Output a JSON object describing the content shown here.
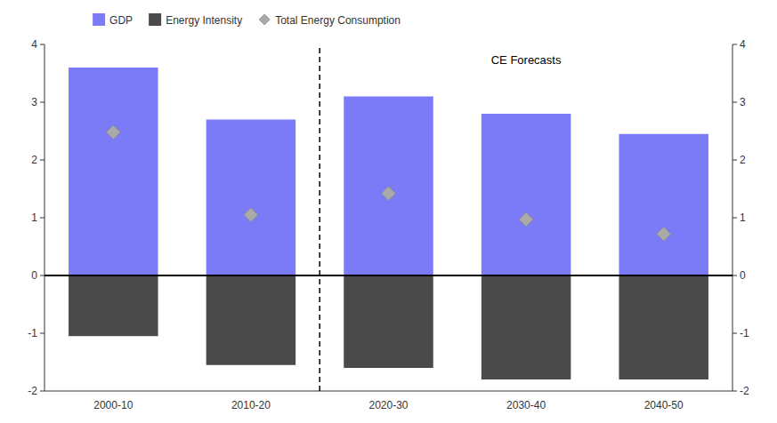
{
  "chart_data": {
    "type": "bar",
    "categories": [
      "2000-10",
      "2010-20",
      "2020-30",
      "2030-40",
      "2040-50"
    ],
    "series": [
      {
        "name": "GDP",
        "type": "bar",
        "color": "#7B7BF7",
        "values": [
          3.6,
          2.7,
          3.1,
          2.8,
          2.45
        ]
      },
      {
        "name": "Energy Intensity",
        "type": "bar",
        "color": "#4A4A4A",
        "values": [
          -1.05,
          -1.55,
          -1.6,
          -1.8,
          -1.8
        ]
      },
      {
        "name": "Total Energy Consumption",
        "type": "scatter",
        "marker": "diamond",
        "color": "#AAAAAA",
        "values": [
          2.48,
          1.05,
          1.42,
          0.97,
          0.72
        ]
      }
    ],
    "stacked": true,
    "ylim": [
      -2,
      4
    ],
    "yticks": [
      -2,
      -1,
      0,
      1,
      2,
      3,
      4
    ],
    "y2lim": [
      -2,
      4
    ],
    "y2ticks": [
      -2,
      -1,
      0,
      1,
      2,
      3,
      4
    ],
    "annotations": [
      {
        "text": "CE Forecasts",
        "x": "2020-30"
      }
    ],
    "legend": "top",
    "grid": false
  }
}
